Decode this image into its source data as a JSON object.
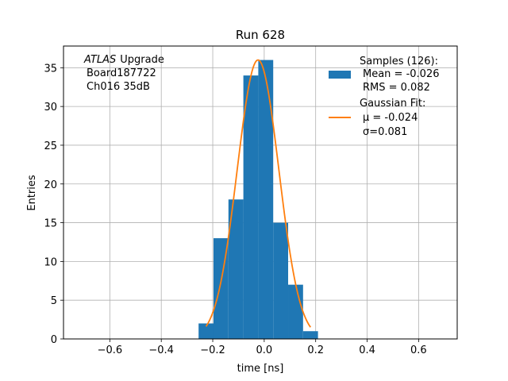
{
  "chart_data": {
    "type": "bar",
    "title": "Run 628",
    "xlabel": "time [ns]",
    "ylabel": "Entries",
    "xlim": [
      -0.78,
      0.75
    ],
    "ylim": [
      0,
      37.8
    ],
    "xticks": [
      -0.6,
      -0.4,
      -0.2,
      0.0,
      0.2,
      0.4,
      0.6
    ],
    "xtick_labels": [
      "−0.6",
      "−0.4",
      "−0.2",
      "0.0",
      "0.2",
      "0.4",
      "0.6"
    ],
    "yticks": [
      0,
      5,
      10,
      15,
      20,
      25,
      30,
      35
    ],
    "ytick_labels": [
      "0",
      "5",
      "10",
      "15",
      "20",
      "25",
      "30",
      "35"
    ],
    "grid": true,
    "legend_position": "top-right",
    "annotation": {
      "atlas": "ATLAS",
      "upgrade": "Upgrade",
      "board": "Board187722",
      "channel": "Ch016 35dB"
    },
    "series": [
      {
        "name": "Samples (126):",
        "kind": "histogram",
        "color": "#1f77b4",
        "stats": [
          "Mean = -0.026",
          "RMS = 0.082"
        ],
        "bins": [
          {
            "x0": -0.255,
            "x1": -0.197,
            "count": 2
          },
          {
            "x0": -0.197,
            "x1": -0.139,
            "count": 13
          },
          {
            "x0": -0.139,
            "x1": -0.081,
            "count": 18
          },
          {
            "x0": -0.081,
            "x1": -0.023,
            "count": 34
          },
          {
            "x0": -0.023,
            "x1": 0.035,
            "count": 36
          },
          {
            "x0": 0.035,
            "x1": 0.093,
            "count": 15
          },
          {
            "x0": 0.093,
            "x1": 0.151,
            "count": 7
          },
          {
            "x0": 0.151,
            "x1": 0.209,
            "count": 1
          }
        ]
      },
      {
        "name": "Gaussian Fit:",
        "kind": "line",
        "color": "#ff7f0e",
        "stats": [
          "μ = -0.024",
          "σ=0.081"
        ],
        "amplitude": 36,
        "mu": -0.024,
        "sigma": 0.081,
        "x_range": [
          -0.226,
          0.18
        ]
      }
    ]
  }
}
